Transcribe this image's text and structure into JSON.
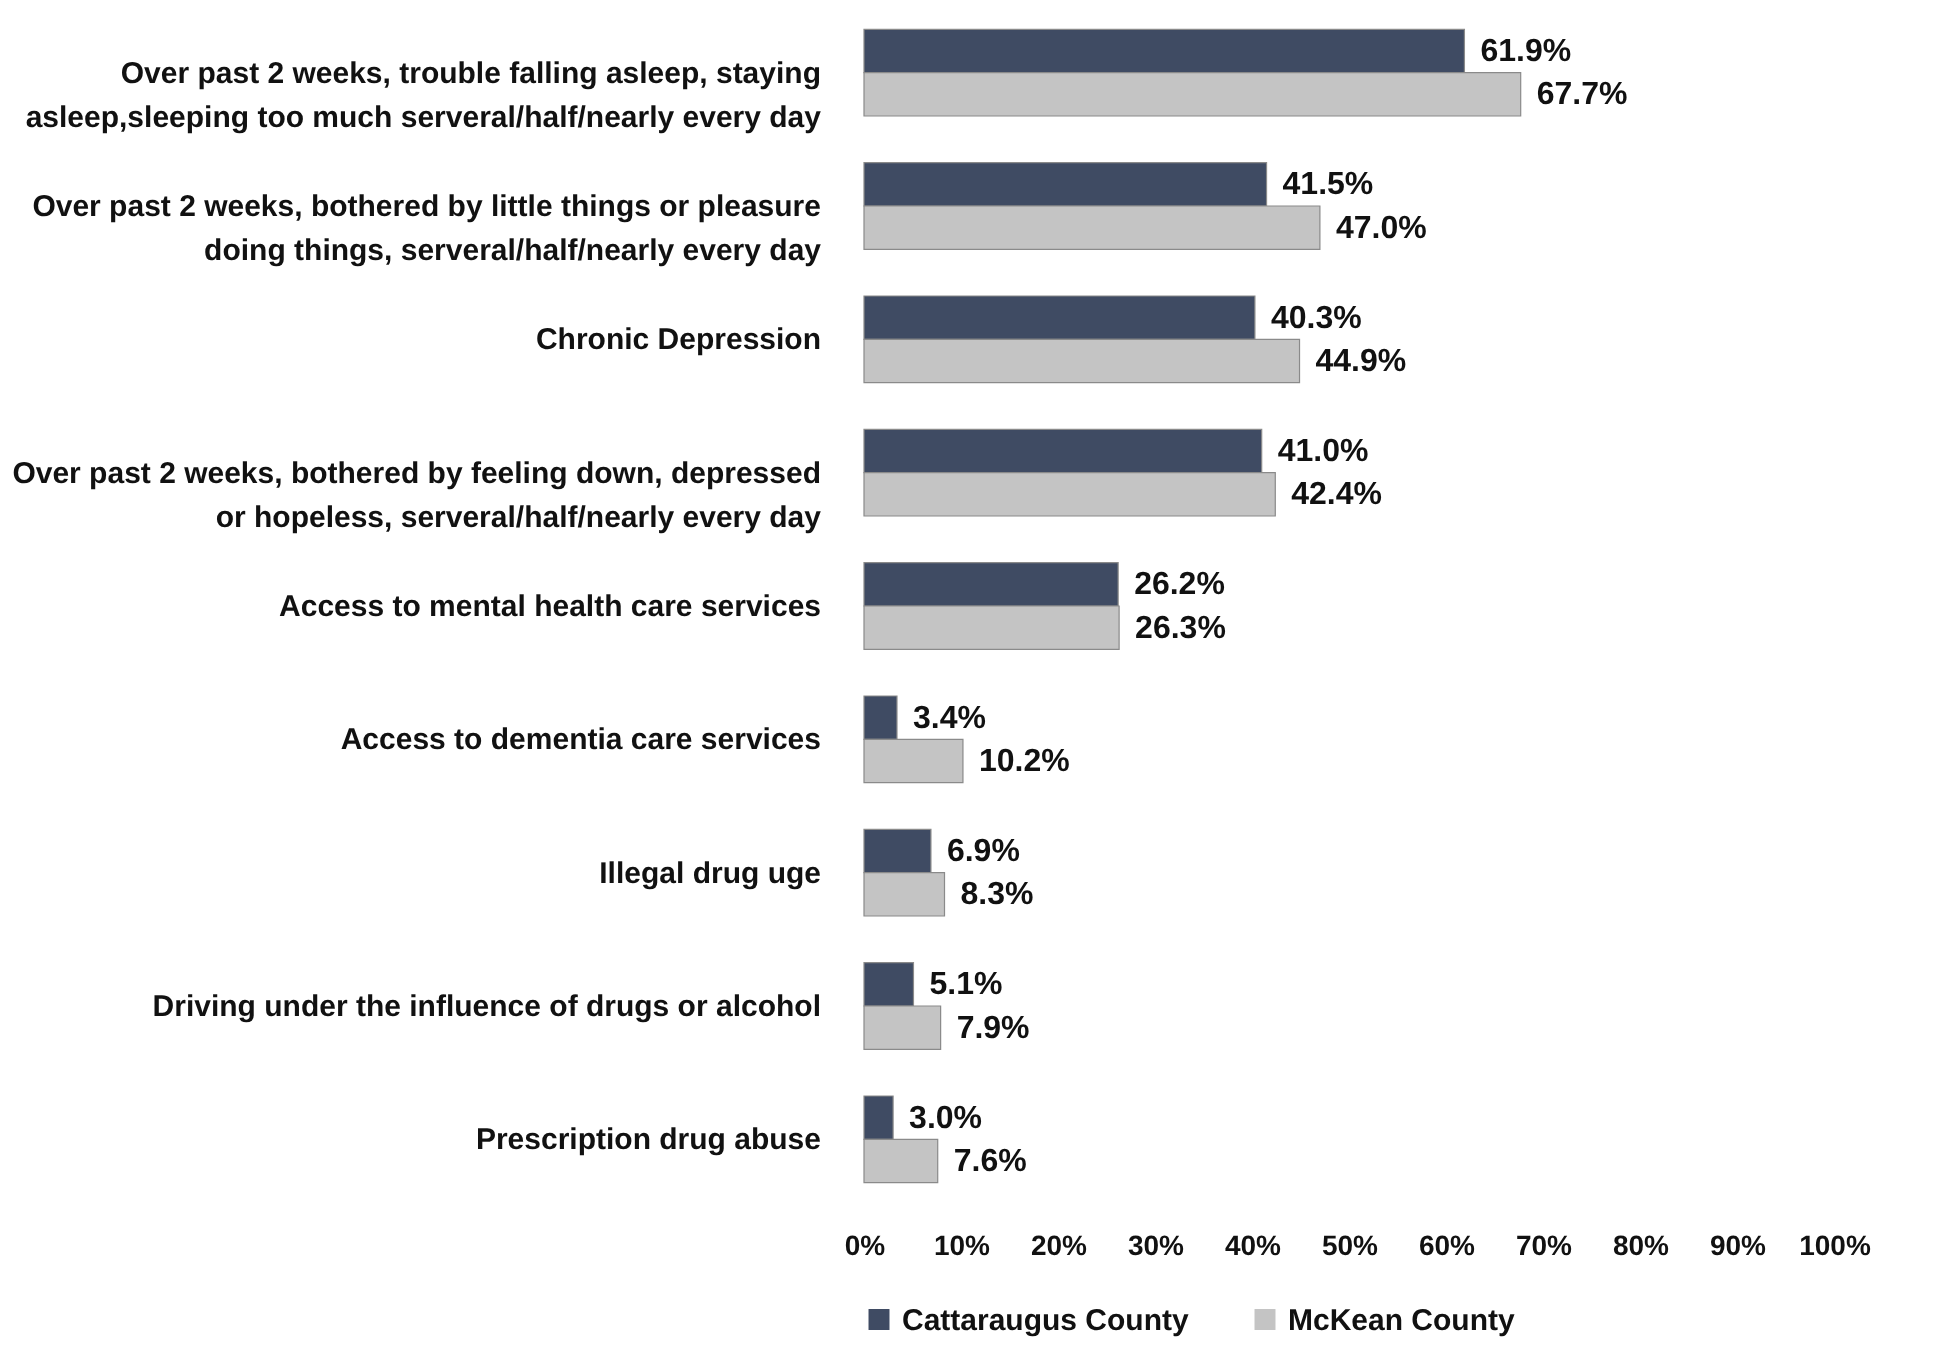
{
  "chart_data": {
    "type": "bar",
    "orientation": "horizontal",
    "categories": [
      "Over past 2 weeks, trouble falling asleep, staying asleep,sleeping too much  serveral/half/nearly every day",
      "Over past 2 weeks, bothered by little things or pleasure doing things,  serveral/half/nearly every day",
      "Chronic Depression",
      "Over past 2 weeks, bothered by feeling down, depressed or hopeless, serveral/half/nearly every day",
      "Access to mental health care services",
      "Access to dementia care services",
      "Illegal drug uge",
      "Driving under the influence of drugs or alcohol",
      "Prescription drug abuse"
    ],
    "series": [
      {
        "name": "Cattaraugus County",
        "color": "#3f4b63",
        "values": [
          61.9,
          41.5,
          40.3,
          41.0,
          26.2,
          3.4,
          6.9,
          5.1,
          3.0
        ],
        "value_labels": [
          "61.9%",
          "41.5%",
          "40.3%",
          "41.0%",
          "26.2%",
          "3.4%",
          "6.9%",
          "5.1%",
          "3.0%"
        ]
      },
      {
        "name": "McKean County",
        "color": "#c4c4c4",
        "values": [
          67.7,
          47.0,
          44.9,
          42.4,
          26.3,
          10.2,
          8.3,
          7.9,
          7.6
        ],
        "value_labels": [
          "67.7%",
          "47.0%",
          "44.9%",
          "42.4%",
          "26.3%",
          "10.2%",
          "8.3%",
          "7.9%",
          "7.6%"
        ]
      }
    ],
    "xlim": [
      0,
      100
    ],
    "xticks": [
      {
        "value": 0,
        "label": "0%"
      },
      {
        "value": 10,
        "label": "10%"
      },
      {
        "value": 20,
        "label": "20%"
      },
      {
        "value": 30,
        "label": "30%"
      },
      {
        "value": 40,
        "label": "40%"
      },
      {
        "value": 50,
        "label": "50%"
      },
      {
        "value": 60,
        "label": "60%"
      },
      {
        "value": 70,
        "label": "70%"
      },
      {
        "value": 80,
        "label": "80%"
      },
      {
        "value": 90,
        "label": "90%"
      },
      {
        "value": 100,
        "label": "100%"
      }
    ],
    "legend": "bottom",
    "grid": false
  }
}
